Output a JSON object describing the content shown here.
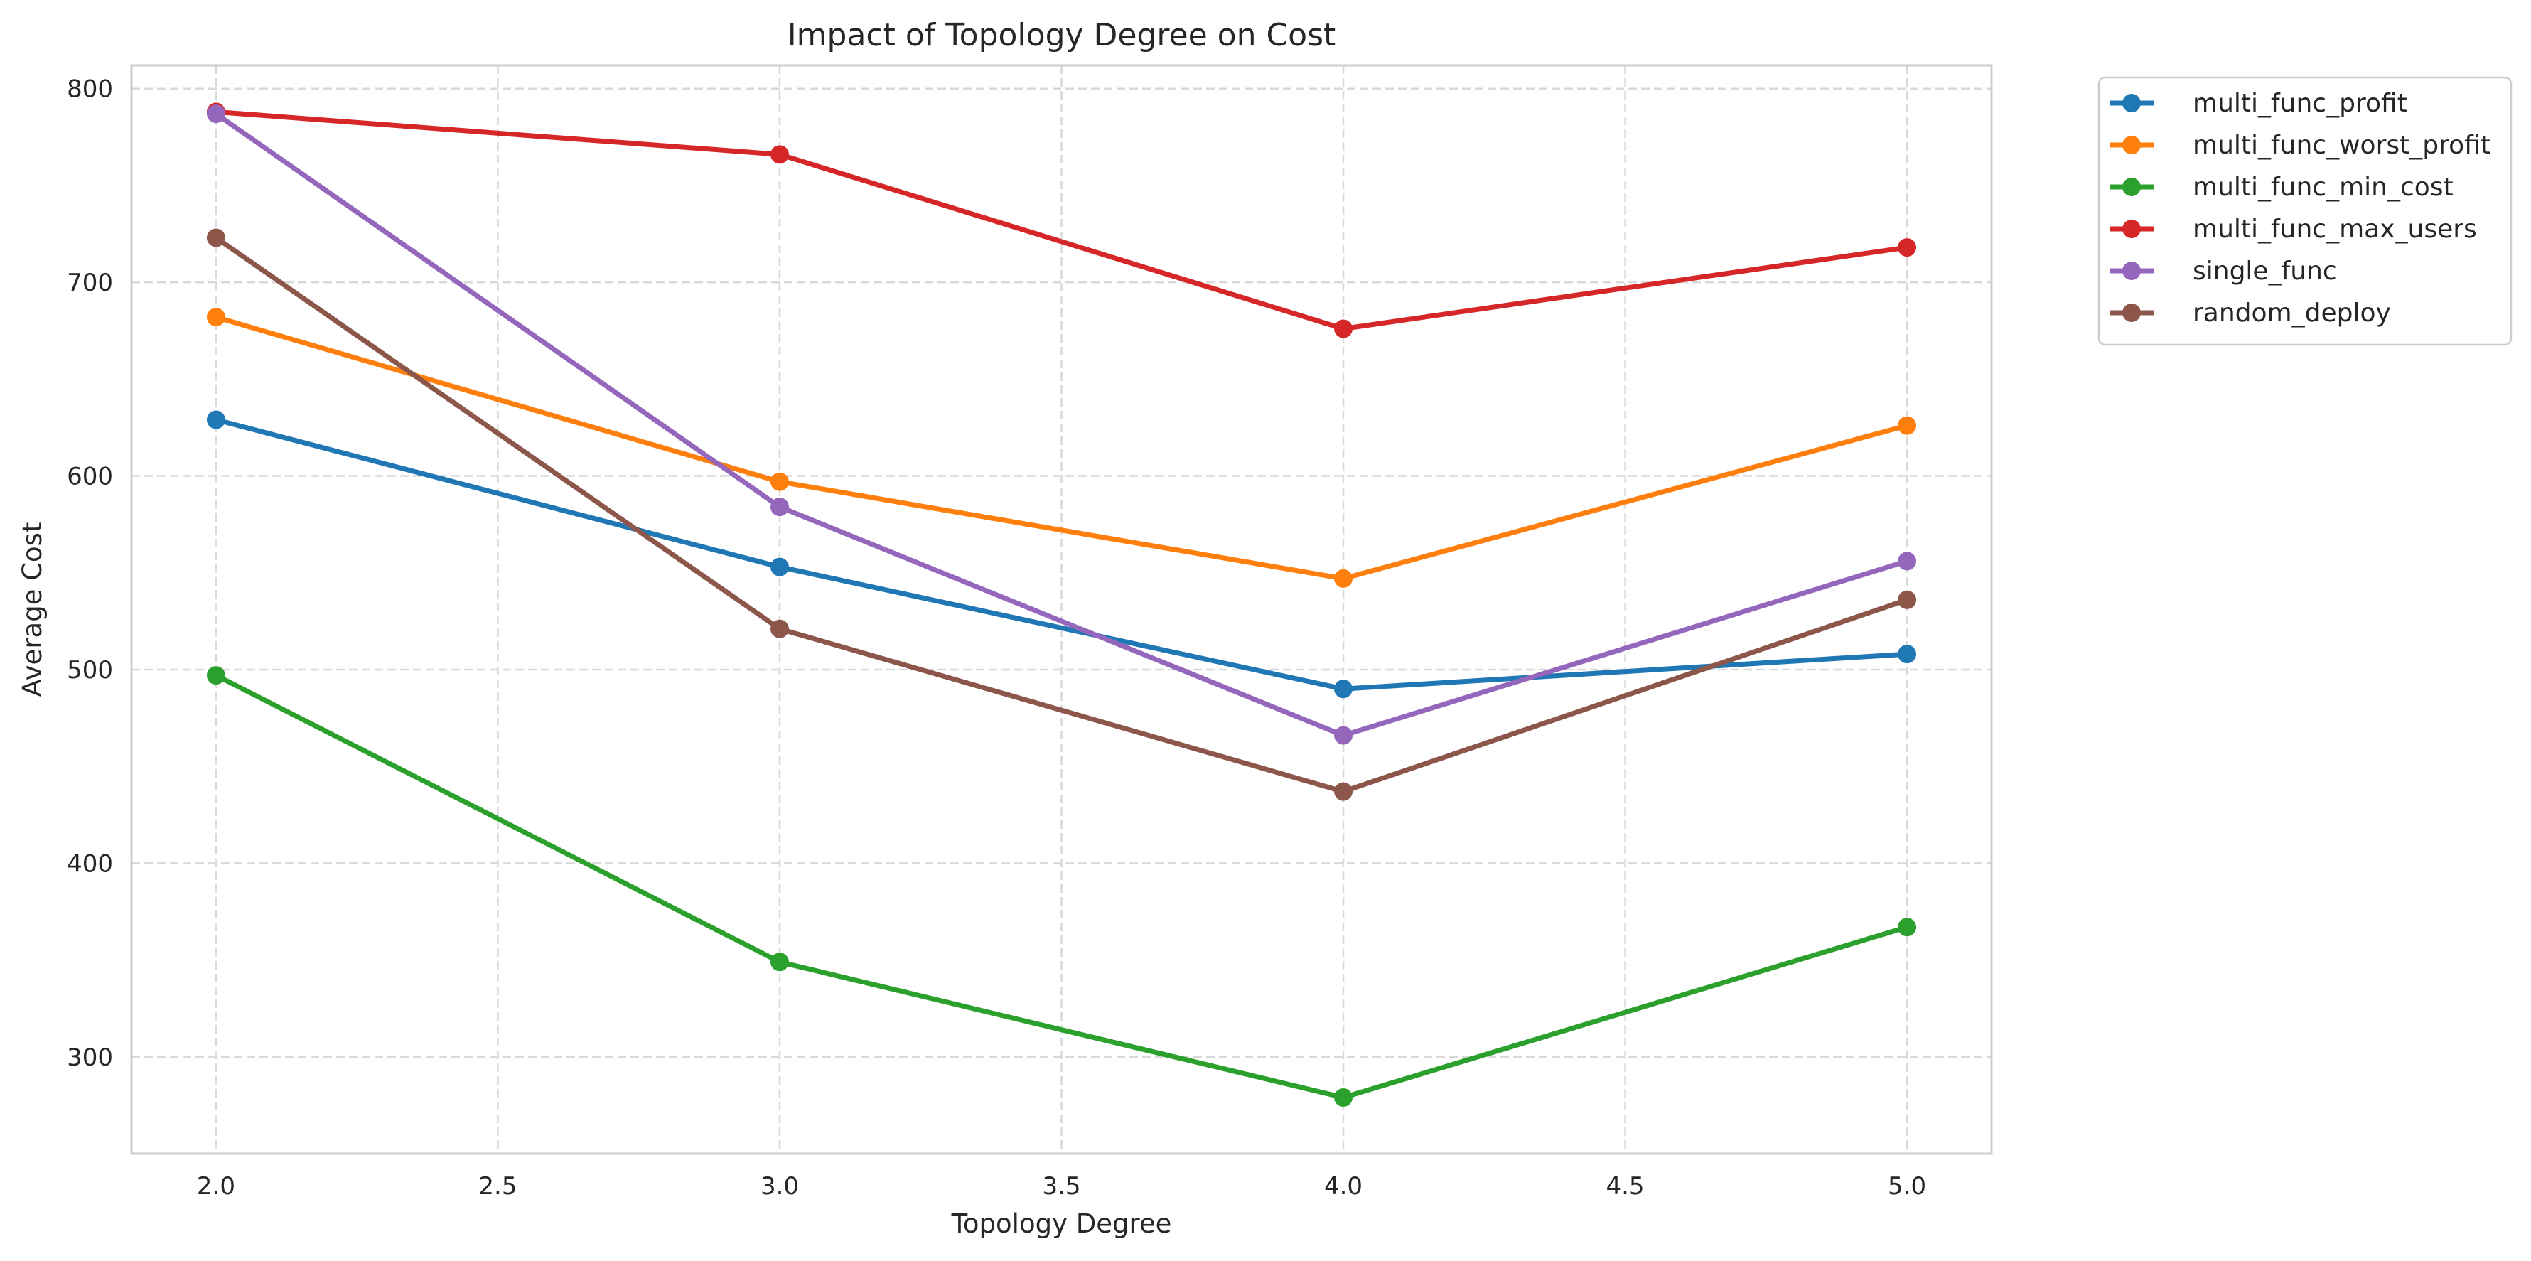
{
  "chart_data": {
    "type": "line",
    "title": "Impact of Topology Degree on Cost",
    "xlabel": "Topology Degree",
    "ylabel": "Average Cost",
    "x": [
      2.0,
      3.0,
      4.0,
      5.0
    ],
    "xlim": [
      1.85,
      5.15
    ],
    "ylim": [
      250,
      812
    ],
    "xticks": [
      2.0,
      2.5,
      3.0,
      3.5,
      4.0,
      4.5,
      5.0
    ],
    "xtick_labels": [
      "2.0",
      "2.5",
      "3.0",
      "3.5",
      "4.0",
      "4.5",
      "5.0"
    ],
    "yticks": [
      300,
      400,
      500,
      600,
      700,
      800
    ],
    "ytick_labels": [
      "300",
      "400",
      "500",
      "600",
      "700",
      "800"
    ],
    "grid": true,
    "legend_position": "outside-top-right",
    "markers": "circle",
    "series": [
      {
        "name": "multi_func_profit",
        "color": "#1f77b4",
        "values": [
          629,
          553,
          490,
          508
        ]
      },
      {
        "name": "multi_func_worst_profit",
        "color": "#ff7f0e",
        "values": [
          682,
          597,
          547,
          626
        ]
      },
      {
        "name": "multi_func_min_cost",
        "color": "#2ca02c",
        "values": [
          497,
          349,
          279,
          367
        ]
      },
      {
        "name": "multi_func_max_users",
        "color": "#d62728",
        "values": [
          788,
          766,
          676,
          718
        ]
      },
      {
        "name": "single_func",
        "color": "#9467bd",
        "values": [
          787,
          584,
          466,
          556
        ]
      },
      {
        "name": "random_deploy",
        "color": "#8c564b",
        "values": [
          723,
          521,
          437,
          536
        ]
      }
    ]
  }
}
